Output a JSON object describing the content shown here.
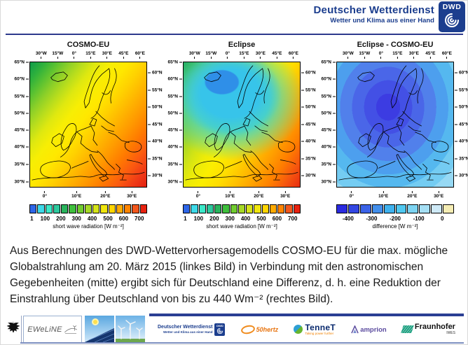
{
  "header": {
    "org": "Deutscher Wetterdienst",
    "tagline": "Wetter und Klima aus einer Hand",
    "logo_text": "DWD",
    "brand_color": "#1c3e8e"
  },
  "maps": [
    {
      "title": "COSMO-EU",
      "axes": {
        "top": [
          "30°W",
          "15°W",
          "0°",
          "15°E",
          "30°E",
          "45°E",
          "60°E"
        ],
        "left": [
          "65°N",
          "60°N",
          "55°N",
          "50°N",
          "45°N",
          "40°N",
          "35°N",
          "30°N"
        ],
        "right": [
          "60°N",
          "55°N",
          "50°N",
          "45°N",
          "40°N",
          "35°N",
          "30°N"
        ],
        "bottom": [
          "0°",
          "10°E",
          "20°E",
          "30°E"
        ]
      },
      "colorbar": {
        "caption": "short wave radiation [W m⁻²]",
        "labels": [
          "1",
          "100",
          "200",
          "300",
          "400",
          "500",
          "600",
          "700"
        ],
        "colors": [
          "#2e66e8",
          "#3ed9e8",
          "#3be8c8",
          "#2ec99e",
          "#29b45c",
          "#3fbf3d",
          "#71cc30",
          "#a6d926",
          "#d5e319",
          "#f0e60d",
          "#ffd500",
          "#ffaa00",
          "#ff8400",
          "#f2571c",
          "#e8220f"
        ]
      }
    },
    {
      "title": "Eclipse",
      "axes": {
        "top": [
          "30°W",
          "15°W",
          "0°",
          "15°E",
          "30°E",
          "45°E",
          "60°E"
        ],
        "left": [
          "65°N",
          "60°N",
          "55°N",
          "50°N",
          "45°N",
          "40°N",
          "35°N",
          "30°N"
        ],
        "right": [
          "60°N",
          "55°N",
          "50°N",
          "45°N",
          "40°N",
          "35°N",
          "30°N"
        ],
        "bottom": [
          "0°",
          "10°E",
          "20°E",
          "30°E"
        ]
      },
      "colorbar": {
        "caption": "short wave radiation [W m⁻²]",
        "labels": [
          "1",
          "100",
          "200",
          "300",
          "400",
          "500",
          "600",
          "700"
        ],
        "colors": [
          "#2e66e8",
          "#3ed9e8",
          "#3be8c8",
          "#2ec99e",
          "#29b45c",
          "#3fbf3d",
          "#71cc30",
          "#a6d926",
          "#d5e319",
          "#f0e60d",
          "#ffd500",
          "#ffaa00",
          "#ff8400",
          "#f2571c",
          "#e8220f"
        ]
      }
    },
    {
      "title": "Eclipse - COSMO-EU",
      "axes": {
        "top": [
          "30°W",
          "15°W",
          "0°",
          "15°E",
          "30°E",
          "45°E",
          "60°E"
        ],
        "left": [
          "65°N",
          "60°N",
          "55°N",
          "50°N",
          "45°N",
          "40°N",
          "35°N",
          "30°N"
        ],
        "right": [
          "60°N",
          "55°N",
          "50°N",
          "45°N",
          "40°N",
          "35°N",
          "30°N"
        ],
        "bottom": [
          "0°",
          "10°E",
          "20°E",
          "30°E"
        ]
      },
      "colorbar": {
        "caption": "difference [W m⁻²]",
        "labels": [
          "-400",
          "-300",
          "-200",
          "-100",
          "0"
        ],
        "colors": [
          "#2b2be0",
          "#3347e3",
          "#3b63e8",
          "#438feb",
          "#3fb2ee",
          "#50c8f0",
          "#7dd4f2",
          "#a5dff4",
          "#cfeaf7",
          "#f5edb4"
        ]
      }
    }
  ],
  "description": {
    "text": "Aus Berechnungen des DWD-Wettervorhersagemodells COSMO-EU für die max. mögliche Globalstrahlung am 20. März 2015 (linkes Bild) in Verbindung mit den astronomischen Gegebenheiten (mitte) ergibt sich für Deutschland eine Differenz, d. h. eine Reduktion der Einstrahlung über Deutschland von bis zu 440 Wm⁻² (rechtes Bild)."
  },
  "footer": {
    "project": "EWeLiNE",
    "dwd": {
      "org": "Deutscher Wetterdienst",
      "tagline": "Wetter und Klima aus einer Hand",
      "logo_text": "DWD"
    },
    "partners": [
      {
        "name": "50hertz"
      },
      {
        "name": "TenneT",
        "tagline": "Taking power further"
      },
      {
        "name": "amprion"
      },
      {
        "name": "Fraunhofer",
        "unit": "IWES"
      }
    ]
  }
}
